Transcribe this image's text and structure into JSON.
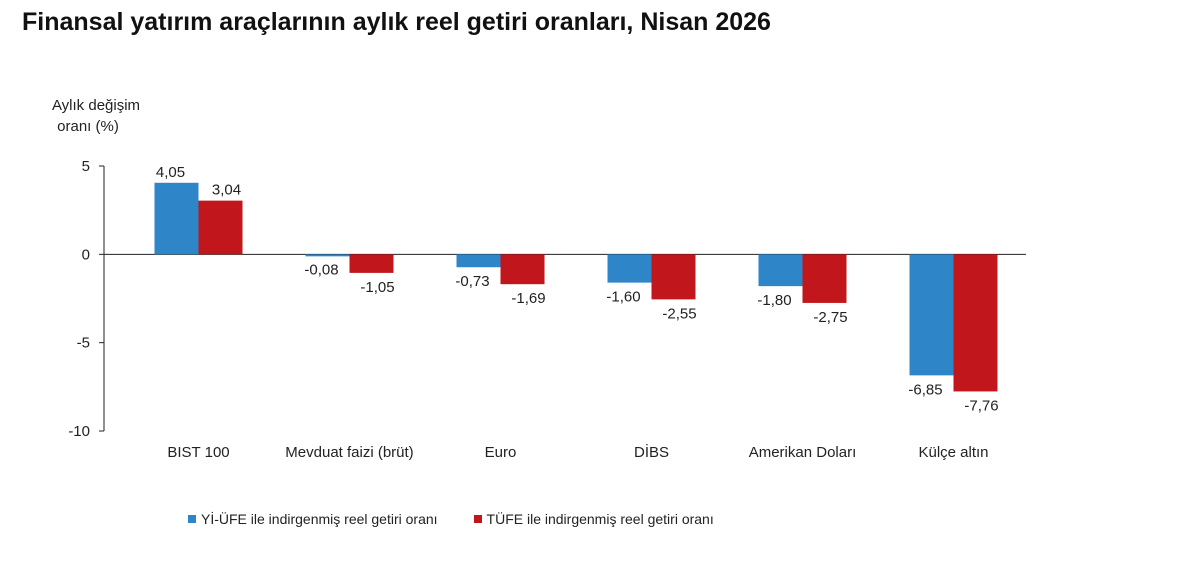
{
  "title": "Finansal yatırım araçlarının aylık reel getiri oranları, Nisan 2026",
  "chart_data": {
    "type": "bar",
    "ylabel": [
      "Aylık değişim",
      "oranı (%)"
    ],
    "ylim": [
      -10,
      5
    ],
    "yticks": [
      5,
      0,
      -5,
      -10
    ],
    "categories": [
      "BIST 100",
      "Mevduat faizi (brüt)",
      "Euro",
      "DİBS",
      "Amerikan Doları",
      "Külçe altın"
    ],
    "series": [
      {
        "name": "Yİ-ÜFE ile indirgenmiş reel getiri oranı",
        "color": "#2E86C9",
        "values": [
          4.05,
          -0.08,
          -0.73,
          -1.6,
          -1.8,
          -6.85
        ],
        "labels": [
          "4,05",
          "-0,08",
          "-0,73",
          "-1,60",
          "-1,80",
          "-6,85"
        ]
      },
      {
        "name": "TÜFE ile indirgenmiş reel getiri oranı",
        "color": "#C0161C",
        "values": [
          3.04,
          -1.05,
          -1.69,
          -2.55,
          -2.75,
          -7.76
        ],
        "labels": [
          "3,04",
          "-1,05",
          "-1,69",
          "-2,55",
          "-2,75",
          "-7,76"
        ]
      }
    ],
    "grid": false,
    "legend_position": "bottom"
  }
}
